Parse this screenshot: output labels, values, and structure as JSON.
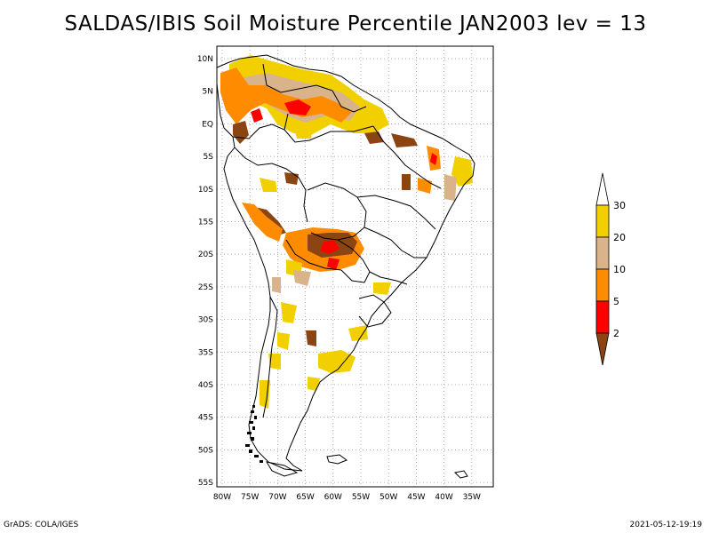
{
  "title": "SALDAS/IBIS Soil Moisture Percentile JAN2003 lev = 13",
  "footer": {
    "left": "GrADS: COLA/IGES",
    "right": "2021-05-12-19:19"
  },
  "map": {
    "lon_labels": [
      "80W",
      "75W",
      "70W",
      "65W",
      "60W",
      "55W",
      "50W",
      "45W",
      "40W",
      "35W"
    ],
    "lat_labels": [
      "10N",
      "5N",
      "EQ",
      "5S",
      "10S",
      "15S",
      "20S",
      "25S",
      "30S",
      "35S",
      "40S",
      "45S",
      "50S",
      "55S"
    ],
    "lon_range": [
      -81,
      -32
    ],
    "lat_range": [
      -56,
      12
    ],
    "grid": "dotted"
  },
  "legend": {
    "labels": [
      "30",
      "20",
      "10",
      "5",
      "2"
    ],
    "colors": [
      "#ffffff",
      "#f2d000",
      "#d9b48a",
      "#ff8c00",
      "#ff0000",
      "#8b4513"
    ]
  },
  "colors": {
    "yellow": "#f2d000",
    "tan": "#d9b48a",
    "orange": "#ff8c00",
    "red": "#ff0000",
    "brown": "#8b4513"
  }
}
